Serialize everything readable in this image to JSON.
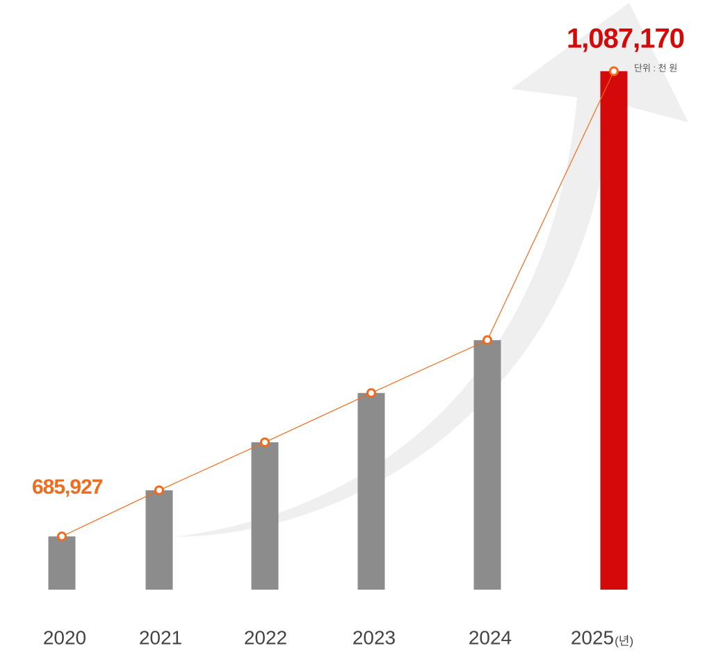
{
  "chart_data": {
    "type": "bar",
    "categories": [
      "2020",
      "2021",
      "2022",
      "2023",
      "2024",
      "2025"
    ],
    "values": [
      685927,
      725700,
      767100,
      809600,
      855200,
      1087170
    ],
    "value_labels": [
      "685,927",
      null,
      null,
      null,
      null,
      "1,087,170"
    ],
    "colors": [
      "#8c8c8c",
      "#8c8c8c",
      "#8c8c8c",
      "#8c8c8c",
      "#8c8c8c",
      "#d40a0a"
    ],
    "label_colors": [
      "#f26a1b",
      null,
      null,
      null,
      null,
      "#d40a0a"
    ],
    "line_color": "#f26a1b",
    "unit_label": "단위 : 천 원",
    "x_unit": "(년)",
    "ylim": [
      640000,
      1100000
    ]
  }
}
